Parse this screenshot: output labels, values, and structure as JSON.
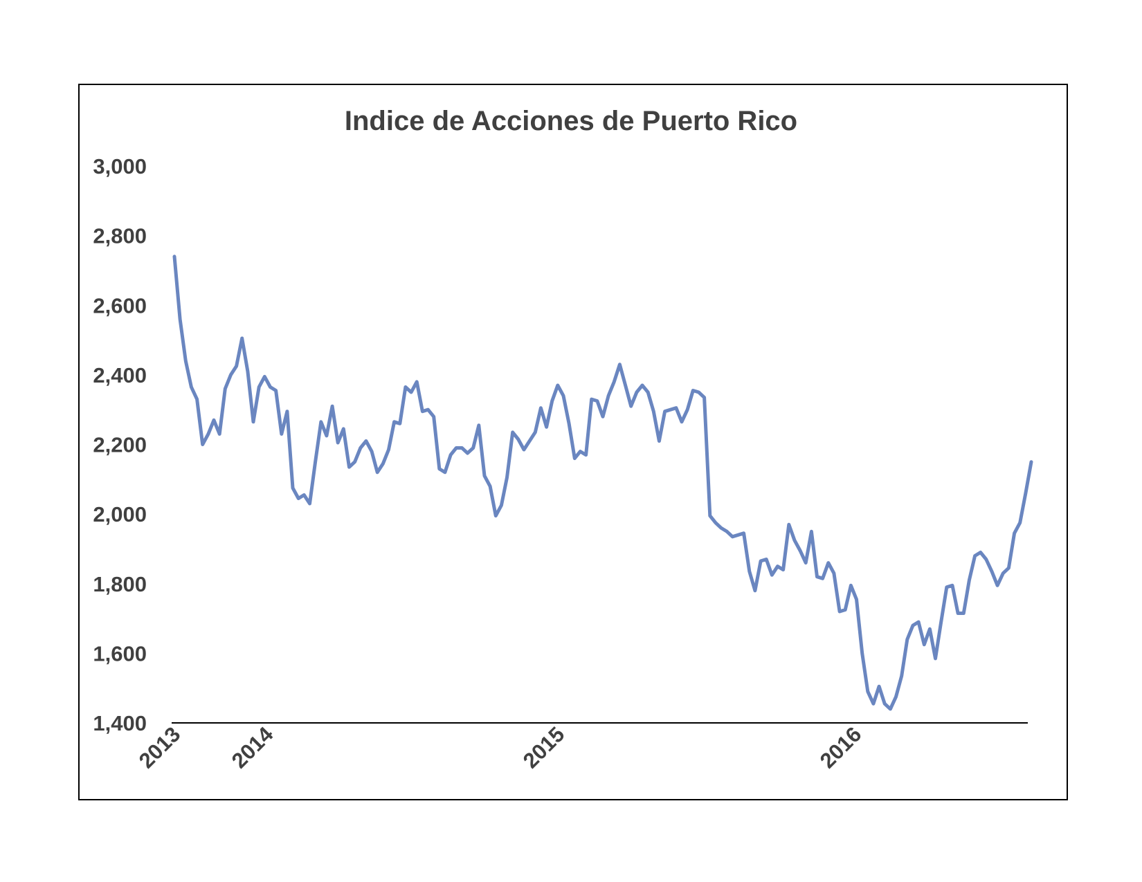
{
  "chart_data": {
    "type": "line",
    "title": "Indice de Acciones de Puerto Rico",
    "xlabel": "",
    "ylabel": "",
    "ylim": [
      1400,
      3000
    ],
    "yticks": [
      "3,000",
      "2,800",
      "2,600",
      "2,400",
      "2,200",
      "2,000",
      "1,800",
      "1,600",
      "1,400"
    ],
    "ytick_values": [
      3000,
      2800,
      2600,
      2400,
      2200,
      2000,
      1800,
      1600,
      1400
    ],
    "xticks": [
      "2013",
      "2014",
      "2015",
      "2016"
    ],
    "grid": false,
    "legend": "none",
    "line_color": "#6a86c0",
    "series": [
      {
        "values": [
          2740,
          2560,
          2440,
          2365,
          2330,
          2200,
          2230,
          2270,
          2230,
          2360,
          2400,
          2425,
          2505,
          2410,
          2265,
          2365,
          2395,
          2365,
          2355,
          2230,
          2295,
          2075,
          2045,
          2055,
          2030,
          2150,
          2265,
          2225,
          2310,
          2205,
          2245,
          2135,
          2150,
          2190,
          2210,
          2180,
          2120,
          2145,
          2185,
          2265,
          2260,
          2365,
          2350,
          2380,
          2295,
          2300,
          2280,
          2130,
          2120,
          2170,
          2190,
          2190,
          2175,
          2190,
          2255,
          2110,
          2080,
          1995,
          2025,
          2105,
          2235,
          2215,
          2185,
          2210,
          2235,
          2305,
          2250,
          2325,
          2370,
          2340,
          2260,
          2160,
          2180,
          2170,
          2330,
          2325,
          2280,
          2340,
          2380,
          2430,
          2370,
          2310,
          2350,
          2370,
          2350,
          2295,
          2210,
          2295,
          2300,
          2305,
          2265,
          2300,
          2355,
          2350,
          2335,
          1995,
          1975,
          1960,
          1950,
          1935,
          1940,
          1945,
          1835,
          1780,
          1865,
          1870,
          1825,
          1850,
          1840,
          1970,
          1925,
          1895,
          1860,
          1950,
          1820,
          1815,
          1860,
          1830,
          1720,
          1725,
          1795,
          1755,
          1600,
          1490,
          1455,
          1505,
          1455,
          1440,
          1475,
          1535,
          1640,
          1680,
          1690,
          1625,
          1670,
          1585,
          1690,
          1790,
          1795,
          1715,
          1715,
          1810,
          1880,
          1890,
          1870,
          1835,
          1795,
          1830,
          1845,
          1945,
          1975,
          2060,
          2150
        ]
      }
    ]
  }
}
